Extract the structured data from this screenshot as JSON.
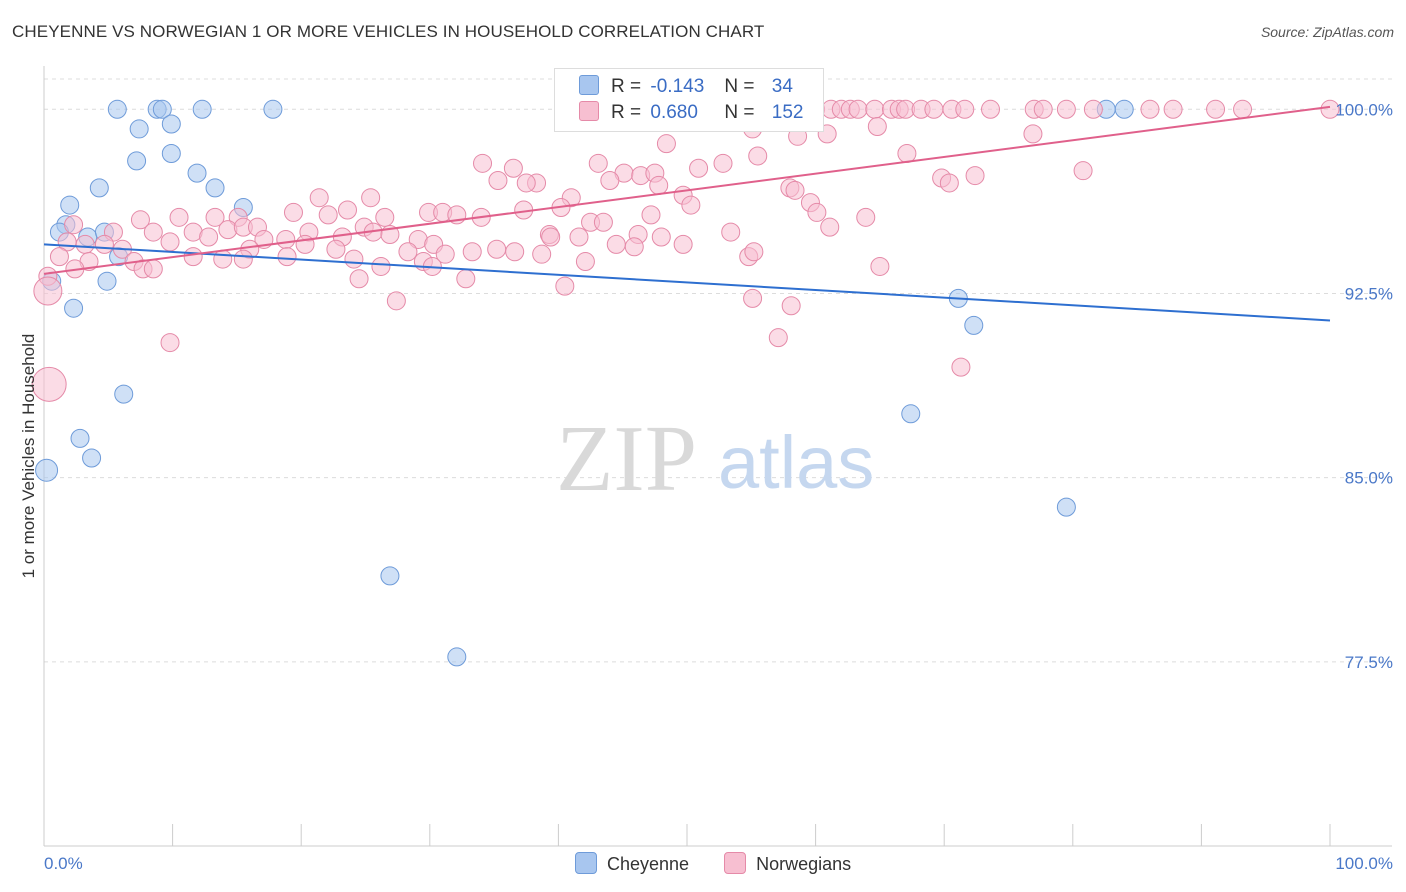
{
  "title": "CHEYENNE VS NORWEGIAN 1 OR MORE VEHICLES IN HOUSEHOLD CORRELATION CHART",
  "source": "Source: ZipAtlas.com",
  "watermark": {
    "zip": "ZIP",
    "atlas": "atlas"
  },
  "legend": {
    "rows": [
      {
        "r_label": "R =",
        "r_value": "-0.143",
        "n_label": "N =",
        "n_value": "34",
        "color": "#a8c6ef",
        "border": "#6e9bd9"
      },
      {
        "r_label": "R =",
        "r_value": "0.680",
        "n_label": "N =",
        "n_value": "152",
        "color": "#f7bfd1",
        "border": "#e58aa8"
      }
    ]
  },
  "bottom_legend": {
    "items": [
      "Cheyenne",
      "Norwegians"
    ]
  },
  "chart_data": {
    "type": "scatter",
    "xlabel": "",
    "ylabel": "1 or more Vehicles in Household",
    "xlim": [
      0,
      100
    ],
    "ylim": [
      70.0,
      101.6
    ],
    "x_tick_labels": [
      "0.0%",
      "100.0%"
    ],
    "y_ticks": [
      77.5,
      85.0,
      92.5,
      100.0
    ],
    "y_tick_labels": [
      "77.5%",
      "85.0%",
      "92.5%",
      "100.0%"
    ],
    "grid": true,
    "series": [
      {
        "name": "Cheyenne",
        "color": "#a8c6ef",
        "stroke": "#6e9bd9",
        "line_color": "#2e6fd0",
        "trend": [
          [
            0.0,
            94.5
          ],
          [
            100.0,
            91.4
          ]
        ],
        "points": [
          [
            5.7,
            100.0
          ],
          [
            8.8,
            100.0
          ],
          [
            9.2,
            100.0
          ],
          [
            12.3,
            100.0
          ],
          [
            17.8,
            100.0
          ],
          [
            82.6,
            100.0
          ],
          [
            84.0,
            100.0
          ],
          [
            7.4,
            99.2
          ],
          [
            9.9,
            99.4
          ],
          [
            7.2,
            97.9
          ],
          [
            9.9,
            98.2
          ],
          [
            11.9,
            97.4
          ],
          [
            4.3,
            96.8
          ],
          [
            13.3,
            96.8
          ],
          [
            2.0,
            96.1
          ],
          [
            15.5,
            96.0
          ],
          [
            1.7,
            95.3
          ],
          [
            1.2,
            95.0
          ],
          [
            3.4,
            94.8
          ],
          [
            4.7,
            95.0
          ],
          [
            5.8,
            94.0
          ],
          [
            0.6,
            93.0
          ],
          [
            4.9,
            93.0
          ],
          [
            2.3,
            91.9
          ],
          [
            71.1,
            92.3
          ],
          [
            72.3,
            91.2
          ],
          [
            6.2,
            88.4
          ],
          [
            67.4,
            87.6
          ],
          [
            2.8,
            86.6
          ],
          [
            3.7,
            85.8
          ],
          [
            0.2,
            85.3
          ],
          [
            79.5,
            83.8
          ],
          [
            26.9,
            81.0
          ],
          [
            32.1,
            77.7
          ]
        ]
      },
      {
        "name": "Norwegians",
        "color": "#f7bfd1",
        "stroke": "#e58aa8",
        "line_color": "#e0608b",
        "trend": [
          [
            0.0,
            93.3
          ],
          [
            100.0,
            100.1
          ]
        ],
        "points": [
          [
            60.0,
            100.0
          ],
          [
            61.2,
            100.0
          ],
          [
            62.0,
            100.0
          ],
          [
            62.7,
            100.0
          ],
          [
            63.3,
            100.0
          ],
          [
            64.6,
            100.0
          ],
          [
            65.9,
            100.0
          ],
          [
            66.5,
            100.0
          ],
          [
            67.0,
            100.0
          ],
          [
            68.2,
            100.0
          ],
          [
            69.2,
            100.0
          ],
          [
            70.6,
            100.0
          ],
          [
            71.6,
            100.0
          ],
          [
            73.6,
            100.0
          ],
          [
            77.0,
            100.0
          ],
          [
            77.7,
            100.0
          ],
          [
            79.5,
            100.0
          ],
          [
            81.6,
            100.0
          ],
          [
            86.0,
            100.0
          ],
          [
            87.8,
            100.0
          ],
          [
            91.1,
            100.0
          ],
          [
            93.2,
            100.0
          ],
          [
            100.0,
            100.0
          ],
          [
            57.1,
            99.9
          ],
          [
            64.8,
            99.3
          ],
          [
            60.9,
            99.0
          ],
          [
            55.1,
            99.2
          ],
          [
            76.9,
            99.0
          ],
          [
            48.4,
            98.6
          ],
          [
            58.6,
            98.9
          ],
          [
            55.5,
            98.1
          ],
          [
            67.1,
            98.2
          ],
          [
            80.8,
            97.5
          ],
          [
            43.1,
            97.8
          ],
          [
            45.1,
            97.4
          ],
          [
            46.4,
            97.3
          ],
          [
            47.5,
            97.4
          ],
          [
            50.9,
            97.6
          ],
          [
            52.8,
            97.8
          ],
          [
            72.4,
            97.3
          ],
          [
            34.1,
            97.8
          ],
          [
            36.5,
            97.6
          ],
          [
            38.3,
            97.0
          ],
          [
            44.0,
            97.1
          ],
          [
            58.0,
            96.8
          ],
          [
            58.4,
            96.7
          ],
          [
            69.8,
            97.2
          ],
          [
            70.4,
            97.0
          ],
          [
            35.3,
            97.1
          ],
          [
            37.5,
            97.0
          ],
          [
            47.8,
            96.9
          ],
          [
            21.4,
            96.4
          ],
          [
            25.4,
            96.4
          ],
          [
            41.0,
            96.4
          ],
          [
            49.7,
            96.5
          ],
          [
            23.6,
            95.9
          ],
          [
            29.9,
            95.8
          ],
          [
            34.0,
            95.6
          ],
          [
            37.3,
            95.9
          ],
          [
            40.2,
            96.0
          ],
          [
            50.3,
            96.1
          ],
          [
            59.6,
            96.2
          ],
          [
            60.1,
            95.8
          ],
          [
            19.4,
            95.8
          ],
          [
            22.1,
            95.7
          ],
          [
            26.5,
            95.6
          ],
          [
            31.0,
            95.8
          ],
          [
            32.1,
            95.7
          ],
          [
            42.5,
            95.4
          ],
          [
            43.5,
            95.4
          ],
          [
            47.2,
            95.7
          ],
          [
            63.9,
            95.6
          ],
          [
            10.5,
            95.6
          ],
          [
            13.3,
            95.6
          ],
          [
            15.1,
            95.6
          ],
          [
            7.5,
            95.5
          ],
          [
            2.3,
            95.3
          ],
          [
            61.1,
            95.2
          ],
          [
            8.5,
            95.0
          ],
          [
            11.6,
            95.0
          ],
          [
            14.3,
            95.1
          ],
          [
            15.5,
            95.2
          ],
          [
            16.6,
            95.2
          ],
          [
            20.6,
            95.0
          ],
          [
            24.9,
            95.2
          ],
          [
            25.6,
            95.0
          ],
          [
            39.3,
            94.9
          ],
          [
            41.6,
            94.8
          ],
          [
            53.4,
            95.0
          ],
          [
            5.4,
            95.0
          ],
          [
            9.8,
            94.6
          ],
          [
            12.8,
            94.8
          ],
          [
            17.1,
            94.7
          ],
          [
            18.8,
            94.7
          ],
          [
            23.2,
            94.8
          ],
          [
            26.9,
            94.9
          ],
          [
            29.1,
            94.7
          ],
          [
            30.3,
            94.5
          ],
          [
            35.2,
            94.3
          ],
          [
            39.4,
            94.8
          ],
          [
            46.2,
            94.9
          ],
          [
            48.0,
            94.8
          ],
          [
            1.8,
            94.6
          ],
          [
            3.2,
            94.5
          ],
          [
            4.7,
            94.5
          ],
          [
            6.1,
            94.3
          ],
          [
            16.0,
            94.3
          ],
          [
            20.3,
            94.5
          ],
          [
            22.7,
            94.3
          ],
          [
            28.3,
            94.2
          ],
          [
            31.2,
            94.1
          ],
          [
            33.3,
            94.2
          ],
          [
            36.6,
            94.2
          ],
          [
            38.7,
            94.1
          ],
          [
            44.5,
            94.5
          ],
          [
            45.9,
            94.4
          ],
          [
            49.7,
            94.5
          ],
          [
            54.8,
            94.0
          ],
          [
            55.2,
            94.2
          ],
          [
            1.2,
            94.0
          ],
          [
            3.5,
            93.8
          ],
          [
            7.0,
            93.8
          ],
          [
            11.6,
            94.0
          ],
          [
            13.9,
            93.9
          ],
          [
            15.5,
            93.9
          ],
          [
            18.9,
            94.0
          ],
          [
            24.1,
            93.9
          ],
          [
            26.2,
            93.6
          ],
          [
            29.5,
            93.8
          ],
          [
            30.2,
            93.6
          ],
          [
            42.1,
            93.8
          ],
          [
            65.0,
            93.6
          ],
          [
            0.3,
            93.2
          ],
          [
            2.4,
            93.5
          ],
          [
            7.7,
            93.5
          ],
          [
            8.5,
            93.5
          ],
          [
            24.5,
            93.1
          ],
          [
            32.8,
            93.1
          ],
          [
            40.5,
            92.8
          ],
          [
            55.1,
            92.3
          ],
          [
            27.4,
            92.2
          ],
          [
            58.1,
            92.0
          ],
          [
            57.1,
            90.7
          ],
          [
            9.8,
            90.5
          ],
          [
            71.3,
            89.5
          ],
          [
            0.3,
            92.6
          ],
          [
            0.4,
            88.8
          ]
        ]
      }
    ]
  }
}
